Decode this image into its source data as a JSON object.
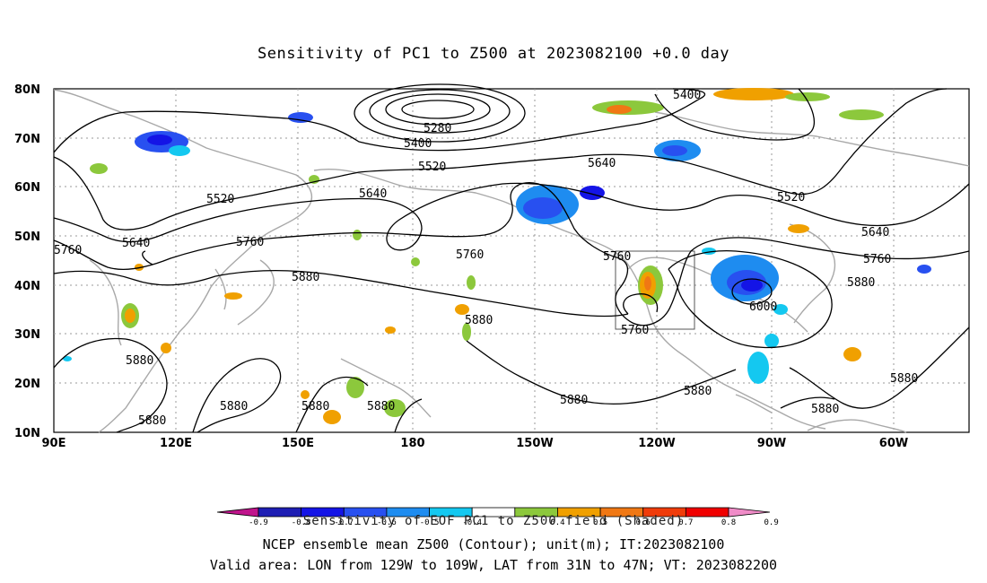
{
  "title": "Sensitivity of PC1 to Z500 at 2023082100 +0.0 day",
  "lat_labels": [
    "80N",
    "70N",
    "60N",
    "50N",
    "40N",
    "30N",
    "20N",
    "10N"
  ],
  "lon_labels": [
    "90E",
    "120E",
    "150E",
    "180",
    "150W",
    "120W",
    "90W",
    "60W"
  ],
  "contour_labels": [
    "5400",
    "5280",
    "5400",
    "5520",
    "5520",
    "5640",
    "5640",
    "5640",
    "5520",
    "5640",
    "5760",
    "5760",
    "5760",
    "5760",
    "5760",
    "5760",
    "5880",
    "5880",
    "5880",
    "6000",
    "5880",
    "5880",
    "5880",
    "5880",
    "5880",
    "5880",
    "5880",
    "5880",
    "5880"
  ],
  "colorbar": {
    "ticks": [
      "-0.9",
      "-0.8",
      "-0.7",
      "-0.6",
      "-0.5",
      "-0.4",
      "0.4",
      "0.5",
      "0.6",
      "0.7",
      "0.8",
      "0.9"
    ],
    "colors": [
      "#c0148c",
      "#1e1eb4",
      "#1414e6",
      "#2850f0",
      "#1e8cf0",
      "#14c8f0",
      "#ffffff",
      "#8cc83c",
      "#f0a000",
      "#f07814",
      "#f03c0a",
      "#f00000",
      "#f08cc8"
    ]
  },
  "footer": {
    "line1": "Sensitivity of EOF PC1 to Z500 field (Shaded)",
    "line2": "NCEP ensemble mean Z500 (Contour); unit(m); IT:2023082100",
    "line3": "Valid area: LON from 129W to 109W, LAT from 31N to 47N; VT: 2023082200"
  }
}
